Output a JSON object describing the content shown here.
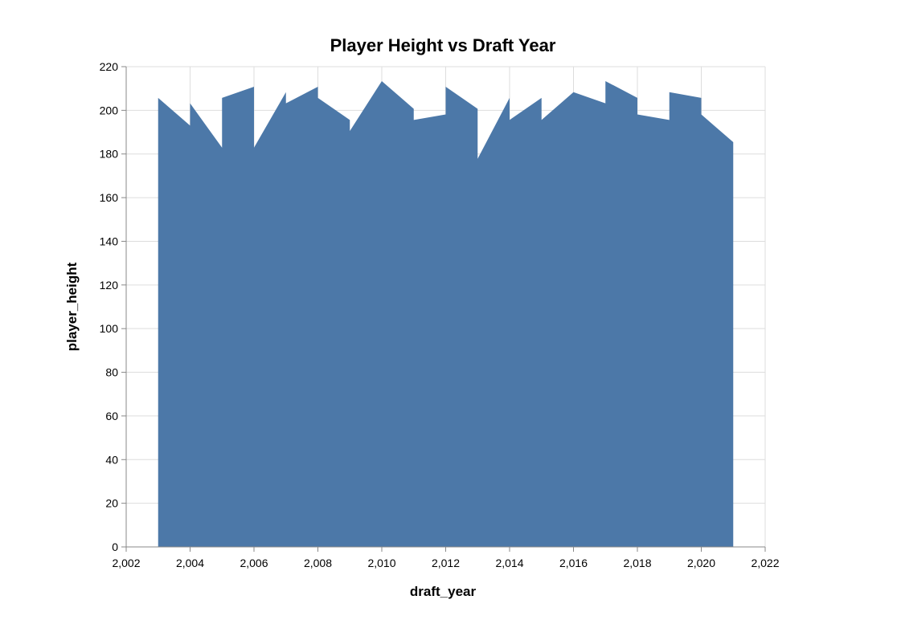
{
  "chart_data": {
    "type": "area",
    "title": "Player Height vs Draft Year",
    "xlabel": "draft_year",
    "ylabel": "player_height",
    "xlim": [
      2002,
      2022
    ],
    "ylim": [
      0,
      220
    ],
    "grid": true,
    "color": "#4c78a8",
    "x_ticks": [
      "2,002",
      "2,004",
      "2,006",
      "2,008",
      "2,010",
      "2,012",
      "2,014",
      "2,016",
      "2,018",
      "2,020",
      "2,022"
    ],
    "y_ticks": [
      "0",
      "20",
      "40",
      "60",
      "80",
      "100",
      "120",
      "140",
      "160",
      "180",
      "200",
      "220"
    ],
    "points": [
      {
        "x": 2003,
        "y": 205.7
      },
      {
        "x": 2004,
        "y": 193.0
      },
      {
        "x": 2004,
        "y": 203.2
      },
      {
        "x": 2005,
        "y": 182.9
      },
      {
        "x": 2005,
        "y": 205.7
      },
      {
        "x": 2006,
        "y": 210.8
      },
      {
        "x": 2006,
        "y": 182.9
      },
      {
        "x": 2007,
        "y": 208.3
      },
      {
        "x": 2007,
        "y": 203.2
      },
      {
        "x": 2008,
        "y": 210.8
      },
      {
        "x": 2008,
        "y": 205.7
      },
      {
        "x": 2009,
        "y": 195.6
      },
      {
        "x": 2009,
        "y": 190.5
      },
      {
        "x": 2010,
        "y": 213.4
      },
      {
        "x": 2011,
        "y": 200.7
      },
      {
        "x": 2011,
        "y": 195.6
      },
      {
        "x": 2012,
        "y": 198.1
      },
      {
        "x": 2012,
        "y": 210.8
      },
      {
        "x": 2013,
        "y": 200.7
      },
      {
        "x": 2013,
        "y": 177.8
      },
      {
        "x": 2014,
        "y": 205.7
      },
      {
        "x": 2014,
        "y": 195.6
      },
      {
        "x": 2015,
        "y": 205.7
      },
      {
        "x": 2015,
        "y": 195.6
      },
      {
        "x": 2016,
        "y": 208.3
      },
      {
        "x": 2017,
        "y": 203.2
      },
      {
        "x": 2017,
        "y": 213.4
      },
      {
        "x": 2018,
        "y": 205.7
      },
      {
        "x": 2018,
        "y": 198.1
      },
      {
        "x": 2019,
        "y": 195.6
      },
      {
        "x": 2019,
        "y": 208.3
      },
      {
        "x": 2020,
        "y": 205.7
      },
      {
        "x": 2020,
        "y": 198.1
      },
      {
        "x": 2021,
        "y": 185.4
      }
    ]
  }
}
